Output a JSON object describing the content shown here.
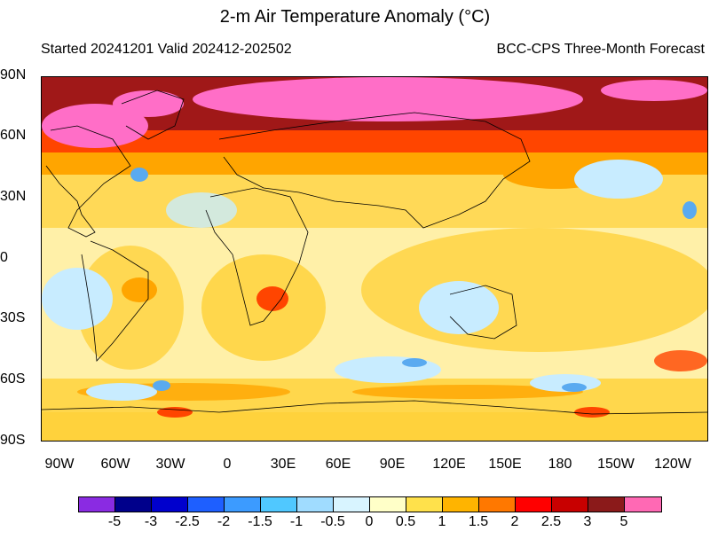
{
  "title": "2-m Air Temperature Anomaly (°C)",
  "subtitle_left": "Started 20241201  Valid 202412-202502",
  "subtitle_right": "BCC-CPS Three-Month Forecast",
  "lat_labels": [
    "90N",
    "60N",
    "30N",
    "0",
    "30S",
    "60S",
    "90S"
  ],
  "lon_labels": [
    "90W",
    "60W",
    "30W",
    "0",
    "30E",
    "60E",
    "90E",
    "120E",
    "150E",
    "180",
    "150W",
    "120W"
  ],
  "colorbar": {
    "colors": [
      "#8a2be2",
      "#00008b",
      "#0000cd",
      "#1e5fff",
      "#3c9bff",
      "#50c8ff",
      "#a0dcff",
      "#d8f4ff",
      "#ffffc8",
      "#ffe14b",
      "#ffb400",
      "#ff7800",
      "#ff0000",
      "#c80000",
      "#8b1a1a",
      "#ff69b4"
    ],
    "labels": [
      "-5",
      "-3",
      "-2.5",
      "-2",
      "-1.5",
      "-1",
      "-0.5",
      "0",
      "0.5",
      "1",
      "1.5",
      "2",
      "2.5",
      "3",
      "5"
    ]
  },
  "map_colors": {
    "ocean_base": "#fff0a8",
    "warm": "#ffd23c",
    "warmer": "#ffa500",
    "hot": "#ff4500",
    "very_hot": "#a01818",
    "extreme": "#ff6ec7",
    "cool": "#c8ecff",
    "cold": "#5aaaf0",
    "coast": "#000000"
  }
}
